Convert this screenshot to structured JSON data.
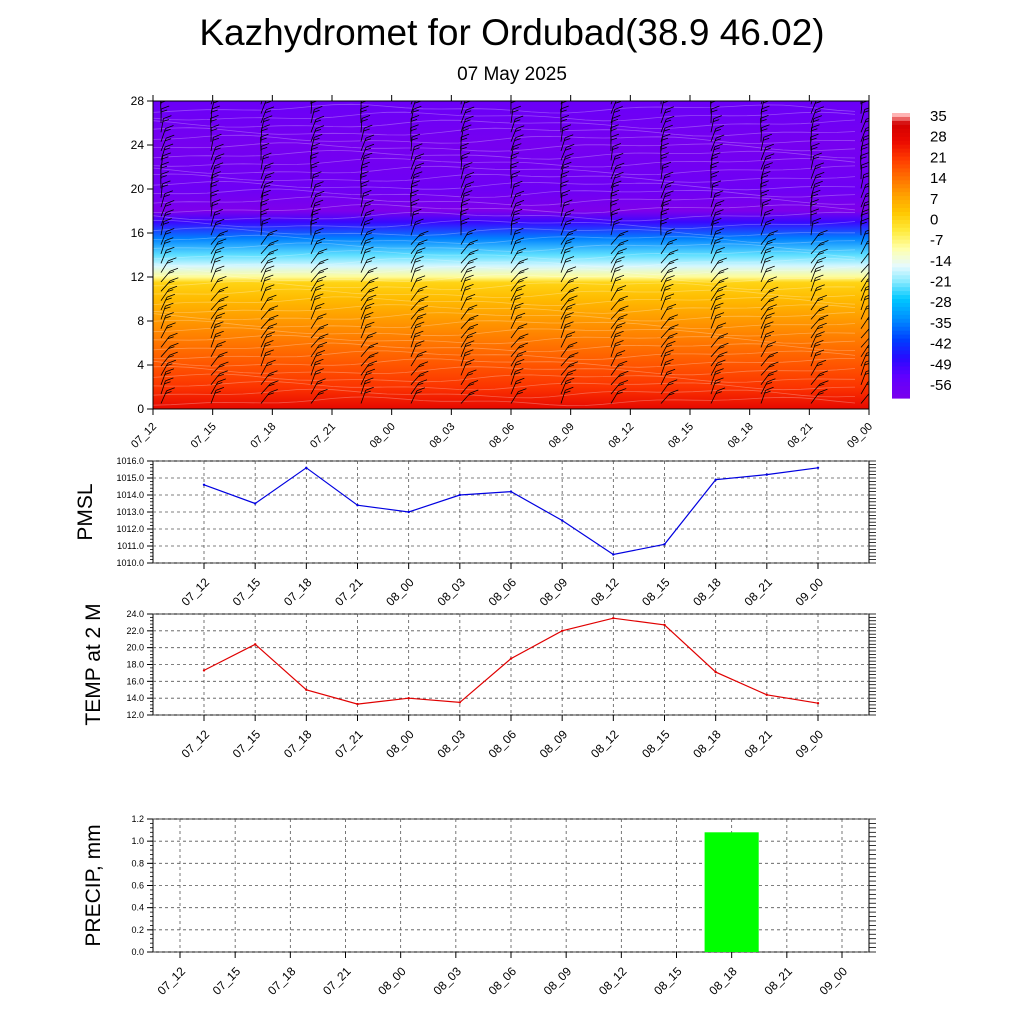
{
  "title": "Kazhydromet for Ordubad(38.9 46.02)",
  "subtitle": "07 May 2025",
  "colors": {
    "pmsl_line": "#0000e0",
    "temp_line": "#e00000",
    "precip_bar": "#00ff00",
    "grid": "#555555"
  },
  "chart_data": [
    {
      "type": "heatmap",
      "name": "upper-air-profile",
      "x": [
        "07_12",
        "07_15",
        "07_18",
        "07_21",
        "08_00",
        "08_03",
        "08_06",
        "08_09",
        "08_12",
        "08_15",
        "08_18",
        "08_21",
        "09_00"
      ],
      "ylim": [
        0,
        28
      ],
      "yticks": [
        "0",
        "4",
        "8",
        "12",
        "16",
        "20",
        "24",
        "28"
      ],
      "colorbar_labels": [
        "35",
        "28",
        "21",
        "14",
        "7",
        "0",
        "-7",
        "-14",
        "-21",
        "-28",
        "-35",
        "-42",
        "-49",
        "-56"
      ],
      "temperature_by_height": [
        {
          "y": 0,
          "value": 28
        },
        {
          "y": 2,
          "value": 22
        },
        {
          "y": 4,
          "value": 18
        },
        {
          "y": 6,
          "value": 14
        },
        {
          "y": 8,
          "value": 10
        },
        {
          "y": 10,
          "value": 5
        },
        {
          "y": 11.5,
          "value": 1
        },
        {
          "y": 12,
          "value": -8
        },
        {
          "y": 13,
          "value": -16
        },
        {
          "y": 14,
          "value": -22
        },
        {
          "y": 15.5,
          "value": -34
        },
        {
          "y": 17,
          "value": -48
        },
        {
          "y": 18,
          "value": -60
        },
        {
          "y": 20,
          "value": -56
        },
        {
          "y": 24,
          "value": -58
        },
        {
          "y": 28,
          "value": -55
        }
      ],
      "wind_barbs": true
    },
    {
      "type": "line",
      "name": "pmsl",
      "ylabel": "PMSL",
      "x": [
        "07_12",
        "07_15",
        "07_18",
        "07_21",
        "08_00",
        "08_03",
        "08_06",
        "08_09",
        "08_12",
        "08_15",
        "08_18",
        "08_21",
        "09_00"
      ],
      "values": [
        1014.6,
        1013.5,
        1015.6,
        1013.4,
        1013.0,
        1014.0,
        1014.2,
        1012.5,
        1010.5,
        1011.1,
        1014.9,
        1015.2,
        1015.6
      ],
      "ylim": [
        1010.0,
        1016.0
      ],
      "yticks": [
        "1010.0",
        "1011.0",
        "1012.0",
        "1013.0",
        "1014.0",
        "1015.0",
        "1016.0"
      ]
    },
    {
      "type": "line",
      "name": "temp-2m",
      "ylabel": "TEMP at 2 M",
      "x": [
        "07_12",
        "07_15",
        "07_18",
        "07_21",
        "08_00",
        "08_03",
        "08_06",
        "08_09",
        "08_12",
        "08_15",
        "08_18",
        "08_21",
        "09_00"
      ],
      "values": [
        17.3,
        20.4,
        15.0,
        13.3,
        14.0,
        13.5,
        18.7,
        22.0,
        23.5,
        22.7,
        17.1,
        14.4,
        13.4
      ],
      "ylim": [
        12.0,
        24.0
      ],
      "yticks": [
        "12.0",
        "14.0",
        "16.0",
        "18.0",
        "20.0",
        "22.0",
        "24.0"
      ]
    },
    {
      "type": "bar",
      "name": "precip",
      "ylabel": "PRECIP, mm",
      "x": [
        "07_12",
        "07_15",
        "07_18",
        "07_21",
        "08_00",
        "08_03",
        "08_06",
        "08_09",
        "08_12",
        "08_15",
        "08_18",
        "08_21",
        "09_00"
      ],
      "values": [
        0,
        0,
        0,
        0,
        0,
        0,
        0,
        0,
        0,
        0,
        1.08,
        0,
        0
      ],
      "ylim": [
        0.0,
        1.2
      ],
      "yticks": [
        "0.0",
        "0.2",
        "0.4",
        "0.6",
        "0.8",
        "1.0",
        "1.2"
      ]
    }
  ]
}
